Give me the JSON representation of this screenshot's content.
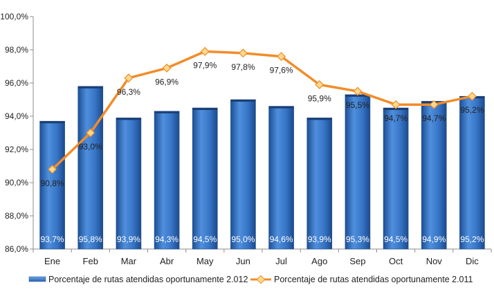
{
  "chart_data": {
    "type": "bar",
    "categories": [
      "Ene",
      "Feb",
      "Mar",
      "Abr",
      "May",
      "Jun",
      "Jul",
      "Ago",
      "Sep",
      "Oct",
      "Nov",
      "Dic"
    ],
    "series": [
      {
        "name": "Porcentaje de rutas atendidas oportunamente 2.012",
        "type": "bar",
        "color": "#3a78c9",
        "values": [
          93.7,
          95.8,
          93.9,
          94.3,
          94.5,
          95.0,
          94.6,
          93.9,
          95.3,
          94.5,
          94.9,
          95.2
        ],
        "labels": [
          "93,7%",
          "95,8%",
          "93,9%",
          "94,3%",
          "94,5%",
          "95,0%",
          "94,6%",
          "93,9%",
          "95,3%",
          "94,5%",
          "94,9%",
          "95,2%"
        ]
      },
      {
        "name": "Porcentaje de rutas atendidas oportunamente 2.011",
        "type": "line",
        "color": "#f28c28",
        "values": [
          90.8,
          93.0,
          96.3,
          96.9,
          97.9,
          97.8,
          97.6,
          95.9,
          95.5,
          94.7,
          94.7,
          95.2
        ],
        "labels": [
          "90,8%",
          "93,0%",
          "96,3%",
          "96,9%",
          "97,9%",
          "97,8%",
          "97,6%",
          "95,9%",
          "95,5%",
          "94,7%",
          "94,7%",
          "95,2%"
        ]
      }
    ],
    "ylim": [
      86.0,
      100.0
    ],
    "yticks": [
      86.0,
      88.0,
      90.0,
      92.0,
      94.0,
      96.0,
      98.0,
      100.0
    ],
    "ytick_labels": [
      "86,0%",
      "88,0%",
      "90,0%",
      "92,0%",
      "94,0%",
      "96,0%",
      "98,0%",
      "100,0%"
    ],
    "title": "",
    "xlabel": "",
    "ylabel": "",
    "grid": false,
    "legend": "bottom"
  }
}
